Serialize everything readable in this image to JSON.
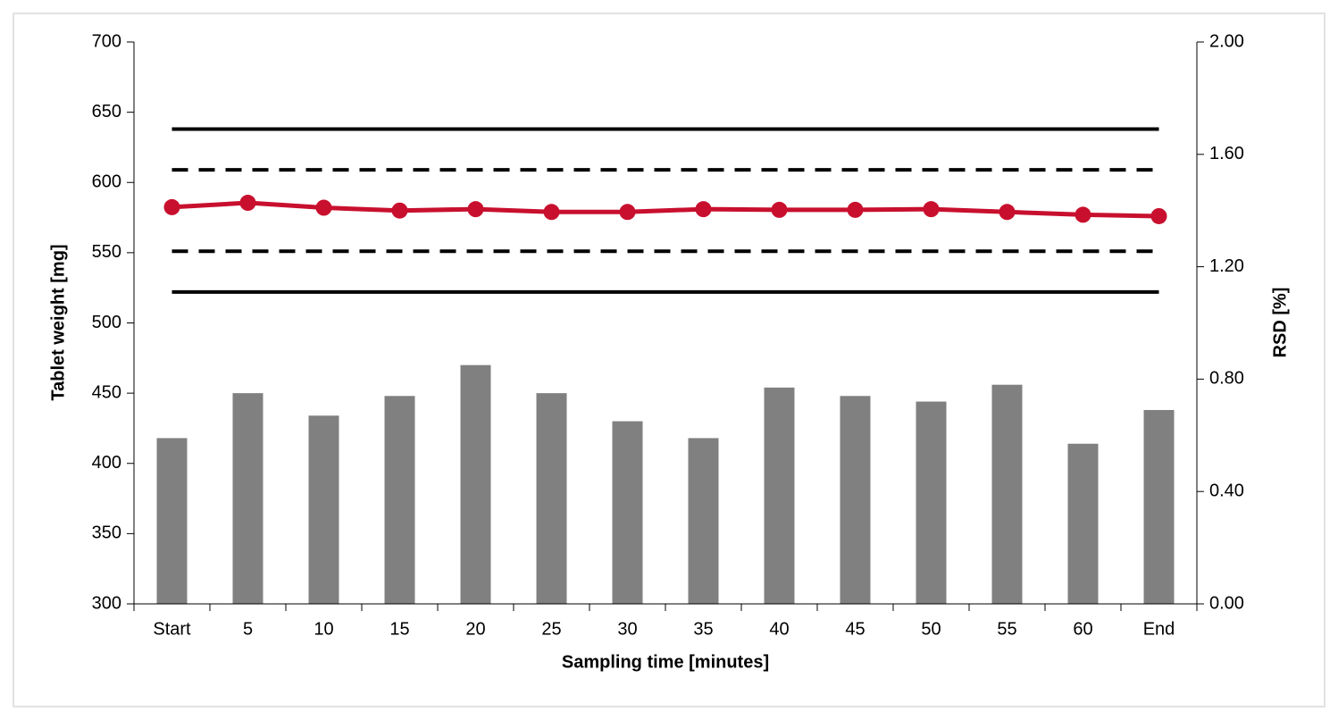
{
  "chart_data": {
    "type": "combo",
    "x_label": "Sampling time [minutes]",
    "y_label": "Tablet weight [mg]",
    "y2_label": "RSD [%]",
    "categories": [
      "Start",
      "5",
      "10",
      "15",
      "20",
      "25",
      "30",
      "35",
      "40",
      "45",
      "50",
      "55",
      "60",
      "End"
    ],
    "series": [
      {
        "type": "bar",
        "axis": "y2",
        "color": "#808080",
        "values": [
          0.59,
          0.75,
          0.67,
          0.74,
          0.85,
          0.75,
          0.65,
          0.59,
          0.77,
          0.74,
          0.72,
          0.78,
          0.57,
          0.69
        ]
      },
      {
        "type": "line",
        "axis": "y",
        "color": "#c8102e",
        "values": [
          582.4,
          585.5,
          582,
          580,
          581,
          579,
          579,
          581,
          580.5,
          580.5,
          581,
          579,
          577,
          576
        ]
      }
    ],
    "hlines": [
      {
        "value": 638,
        "color": "#000000",
        "dashed": false
      },
      {
        "value": 609,
        "color": "#000000",
        "dashed": true
      },
      {
        "value": 551,
        "color": "#000000",
        "dashed": true
      },
      {
        "value": 522,
        "color": "#000000",
        "dashed": false
      }
    ],
    "ylim": [
      300,
      700
    ],
    "yticks": [
      300,
      350,
      400,
      450,
      500,
      550,
      600,
      650,
      700
    ],
    "y2lim": [
      0,
      2
    ],
    "y2ticks": [
      {
        "value": 0,
        "label": "0.00"
      },
      {
        "value": 0.4,
        "label": "0.40"
      },
      {
        "value": 0.8,
        "label": "0.80"
      },
      {
        "value": 1.2,
        "label": "1.20"
      },
      {
        "value": 1.6,
        "label": "1.60"
      },
      {
        "value": 2,
        "label": "2.00"
      }
    ],
    "grid": false
  }
}
